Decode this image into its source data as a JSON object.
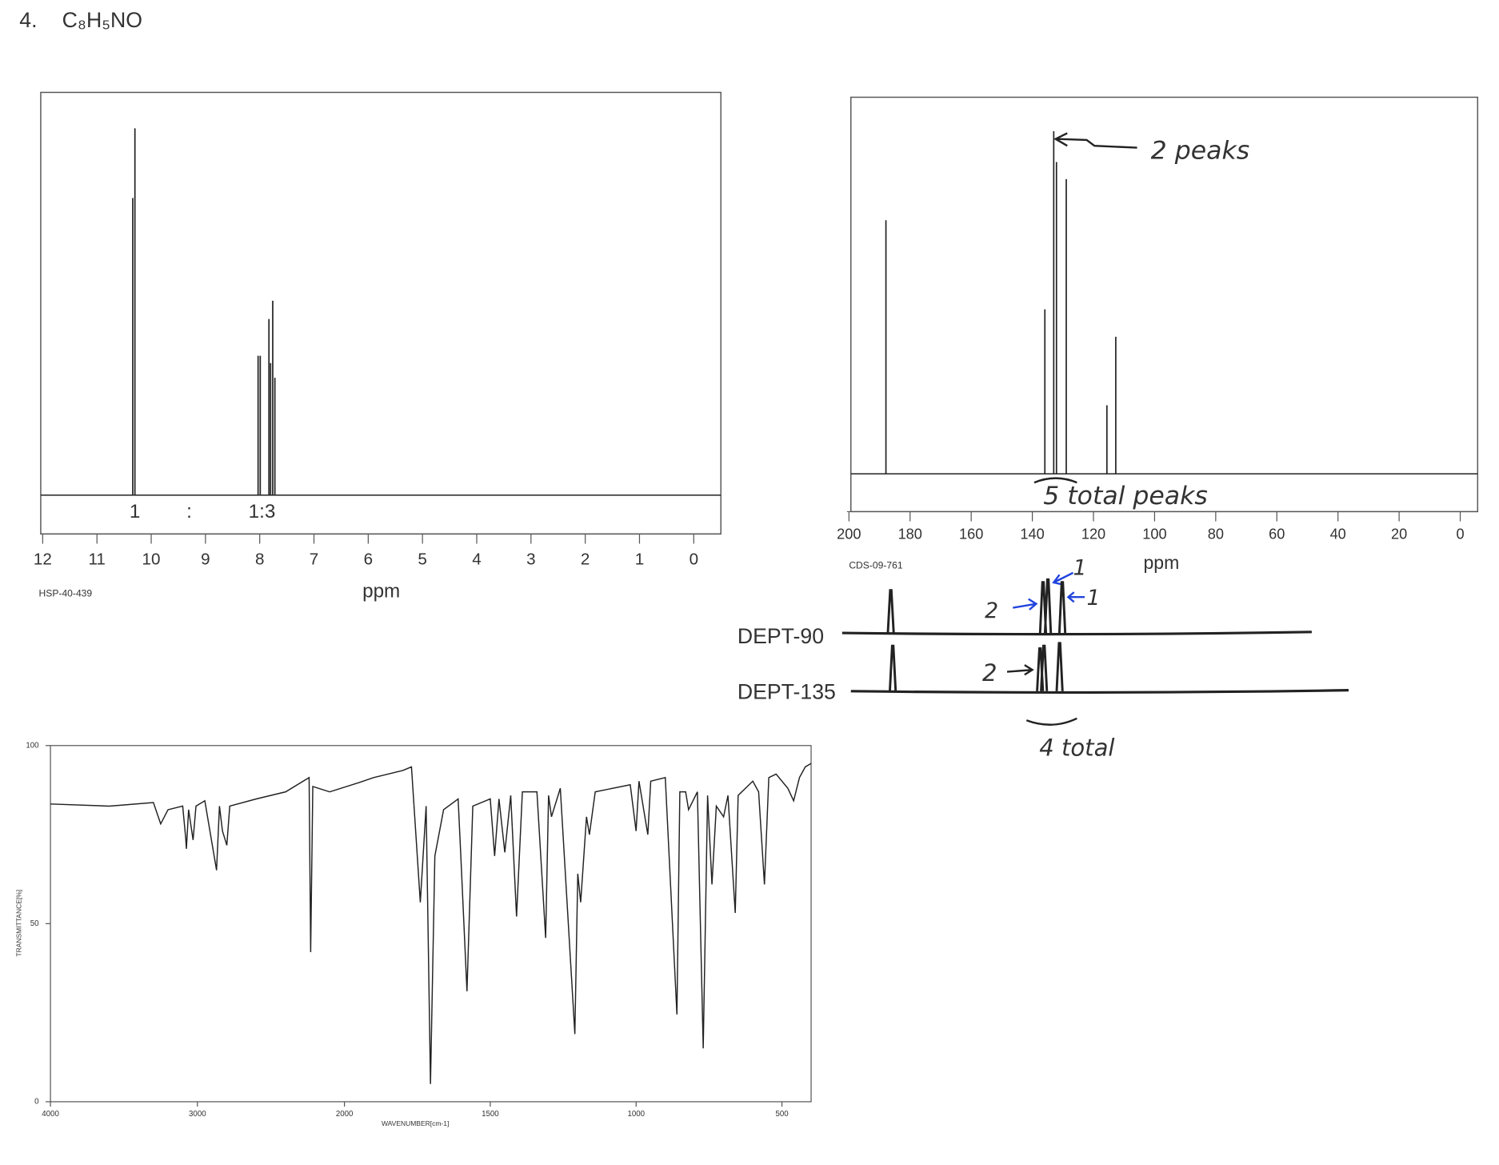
{
  "header": {
    "number": "4.",
    "formula": "C₈H₅NO"
  },
  "chart_data": [
    {
      "type": "stick",
      "x": [
        10.34,
        10.3,
        8.03,
        7.99,
        7.83,
        7.8,
        7.76,
        7.72
      ],
      "values": [
        81,
        100,
        38,
        38,
        48,
        36,
        53,
        32
      ],
      "xlim": [
        12,
        -0.5
      ],
      "xticks": [
        12,
        11,
        10,
        9,
        8,
        7,
        6,
        5,
        4,
        3,
        2,
        1,
        0
      ],
      "ylim": [
        0,
        100
      ],
      "xlabel": "ppm",
      "code": "HSP-40-439",
      "annotations": [
        "1",
        ":",
        "1:3"
      ],
      "color": "#222222"
    },
    {
      "type": "stick",
      "x": [
        187.9,
        135.9,
        133.0,
        132.1,
        128.9,
        115.6,
        112.7
      ],
      "values": [
        74,
        48,
        100,
        91,
        86,
        20,
        40
      ],
      "xlim": [
        200,
        -5.7
      ],
      "xticks": [
        200,
        180,
        160,
        140,
        120,
        100,
        80,
        60,
        40,
        20,
        0
      ],
      "ylim": [
        0,
        100
      ],
      "xlabel": "ppm",
      "code": "CDS-09-761",
      "annotations": [
        "2 peaks",
        "5 total peaks"
      ],
      "color": "#222222"
    },
    {
      "type": "trace",
      "label": "DEPT-90",
      "x": [
        186.3,
        136.5,
        134.9,
        130.2
      ],
      "values": [
        80,
        95,
        100,
        95
      ],
      "xlim": [
        202.2,
        48.6
      ],
      "ylim": [
        0,
        100
      ],
      "annotations": [
        "2",
        "1",
        "1"
      ],
      "color": "#222222"
    },
    {
      "type": "trace",
      "label": "DEPT-135",
      "x": [
        185.7,
        137.5,
        136.2,
        131.1
      ],
      "values": [
        85,
        80,
        85,
        90
      ],
      "xlim": [
        199.4,
        36.5
      ],
      "ylim": [
        0,
        100
      ],
      "annotations": [
        "2",
        "4 total"
      ],
      "color": "#222222"
    },
    {
      "type": "line",
      "x": [
        4000,
        3600,
        3300,
        3250,
        3200,
        3100,
        3080,
        3075,
        3060,
        3030,
        3010,
        2950,
        2870,
        2850,
        2830,
        2800,
        2780,
        2600,
        2400,
        2240,
        2230,
        2215,
        2100,
        1950,
        1900,
        1800,
        1770,
        1740,
        1720,
        1705,
        1690,
        1660,
        1610,
        1600,
        1580,
        1560,
        1500,
        1485,
        1470,
        1450,
        1430,
        1410,
        1390,
        1340,
        1310,
        1300,
        1290,
        1260,
        1210,
        1200,
        1190,
        1170,
        1160,
        1140,
        1020,
        1000,
        990,
        960,
        950,
        900,
        860,
        850,
        830,
        820,
        790,
        770,
        755,
        740,
        725,
        700,
        685,
        660,
        650,
        600,
        580,
        560,
        545,
        520,
        480,
        460,
        440,
        420,
        400
      ],
      "values": [
        83.6,
        83,
        84,
        78,
        82,
        83,
        74,
        71,
        82,
        73.5,
        83,
        84.5,
        65,
        83,
        76,
        72,
        83,
        85,
        87,
        91,
        42,
        88.5,
        87,
        89.6,
        91,
        93,
        94,
        56,
        83,
        5,
        69,
        82,
        85,
        67,
        31,
        83,
        85,
        69,
        85,
        70,
        86,
        52,
        87,
        87,
        46,
        86,
        80,
        88,
        19,
        64,
        56,
        80,
        75,
        87,
        89,
        76,
        90,
        75,
        90,
        91,
        24.5,
        87,
        87,
        82,
        87,
        15,
        86,
        61,
        83,
        80,
        86,
        53,
        86,
        90,
        87,
        61,
        91,
        92,
        88,
        84.5,
        91,
        94,
        95
      ],
      "xlim": [
        4000,
        400
      ],
      "xbreak": 2000,
      "xticks": [
        4000,
        3000,
        2000,
        1500,
        1000,
        500
      ],
      "ylim": [
        0,
        100
      ],
      "yticks": [
        0,
        50,
        100
      ],
      "xlabel": "WAVENUMBER[cm-1]",
      "ylabel": "TRANSMITTANCE[%]",
      "color": "#222222"
    }
  ]
}
